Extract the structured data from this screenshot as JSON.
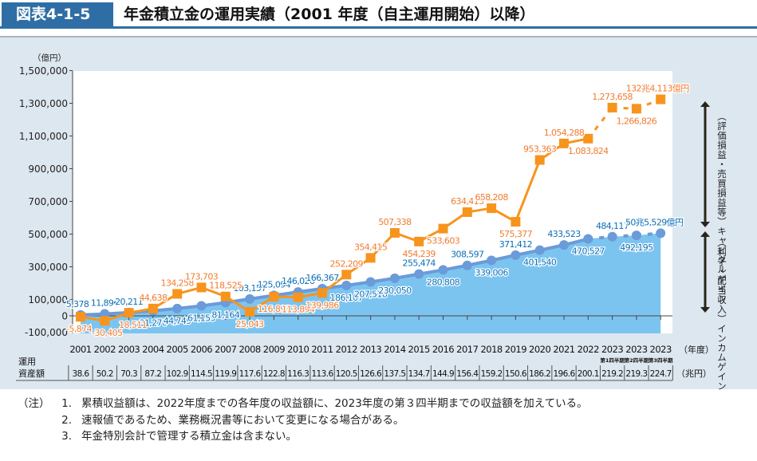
{
  "header": {
    "figure_no": "図表4-1-5",
    "title": "年金積立金の運用実績（2001 年度（自主運用開始）以降）"
  },
  "chart_data": {
    "type": "line",
    "title": "年金積立金の運用実績（2001 年度（自主運用開始）以降）",
    "ylabel": "（億円）",
    "xlabel": "（年度）",
    "ylim": [
      -100000,
      1500000
    ],
    "yticks": [
      -100000,
      0,
      100000,
      300000,
      500000,
      700000,
      900000,
      1100000,
      1300000,
      1500000
    ],
    "ytick_labels": [
      "-100,000",
      "0",
      "100,000",
      "300,000",
      "500,000",
      "700,000",
      "900,000",
      "1,100,000",
      "1,300,000",
      "1,500,000"
    ],
    "categories": [
      "2001",
      "2002",
      "2003",
      "2004",
      "2005",
      "2006",
      "2007",
      "2008",
      "2009",
      "2010",
      "2011",
      "2012",
      "2013",
      "2014",
      "2015",
      "2016",
      "2017",
      "2018",
      "2019",
      "2020",
      "2021",
      "2022",
      "2023",
      "2023",
      "2023"
    ],
    "category_sublabels": [
      "",
      "",
      "",
      "",
      "",
      "",
      "",
      "",
      "",
      "",
      "",
      "",
      "",
      "",
      "",
      "",
      "",
      "",
      "",
      "",
      "",
      "",
      "第1四半期",
      "第2四半期",
      "第3四半期"
    ],
    "series": [
      {
        "name": "キャピタルゲイン（評価損益・売買損益等）",
        "color": "#f7941d",
        "style": "line-square",
        "dashed_from_index": 21,
        "values": [
          -5874,
          -30405,
          18511,
          44638,
          134258,
          173703,
          118525,
          25043,
          116893,
          113894,
          139986,
          252209,
          354415,
          507338,
          454239,
          533603,
          634413,
          658208,
          575377,
          953363,
          1054288,
          1083824,
          1273658,
          1266826,
          1324113
        ],
        "labels": [
          "-5,874",
          "-30,405",
          "18,511",
          "44,638",
          "134,258",
          "173,703",
          "118,525",
          "25,043",
          "116,893",
          "113,894",
          "139,986",
          "252,209",
          "354,415",
          "507,338",
          "454,239",
          "533,603",
          "634,413",
          "658,208",
          "575,377",
          "953,363",
          "1,054,288",
          "1,083,824",
          "1,273,658",
          "1,266,826",
          "132兆4,113億円"
        ]
      },
      {
        "name": "インカムゲイン（利子・配当収入）",
        "color": "#6b9bd8",
        "fill": "#7cc4f0",
        "style": "area-circle",
        "values": [
          5378,
          11896,
          20211,
          31270,
          44749,
          61155,
          81164,
          103157,
          125094,
          146026,
          166367,
          186107,
          207518,
          230050,
          255474,
          280808,
          308597,
          339006,
          371412,
          401540,
          433523,
          470527,
          484117,
          492195,
          505529
        ],
        "labels": [
          "5,378",
          "11,896",
          "20,211",
          "31,270",
          "44,749",
          "61,155",
          "81,164",
          "103,157",
          "125,094",
          "146,026",
          "166,367",
          "186,107",
          "207,518",
          "230,050",
          "255,474",
          "280,808",
          "308,597",
          "339,006",
          "371,412",
          "401,540",
          "433,523",
          "470,527",
          "484,117",
          "492,195",
          "50兆5,529億円"
        ]
      }
    ],
    "annotations": {
      "capital": "（評価損益・売買損益等）キャピタルゲイン",
      "income": "（利子・配当収入）インカムゲイン"
    },
    "assets": {
      "label": "運用資産額",
      "unit": "（兆円）",
      "values": [
        "38.6",
        "50.2",
        "70.3",
        "87.2",
        "102.9",
        "114.5",
        "119.9",
        "117.6",
        "122.8",
        "116.3",
        "113.6",
        "120.5",
        "126.6",
        "137.5",
        "134.7",
        "144.9",
        "156.4",
        "159.2",
        "150.6",
        "186.2",
        "196.6",
        "200.1",
        "219.2",
        "219.3",
        "224.7"
      ]
    },
    "grid": false,
    "legend": "none"
  },
  "notes": {
    "label": "（注）",
    "items": [
      {
        "num": "1.",
        "text": "累積収益額は、2022年度までの各年度の収益額に、2023年度の第３四半期までの収益額を加えている。"
      },
      {
        "num": "2.",
        "text": "速報値であるため、業務概況書等において変更になる場合がある。"
      },
      {
        "num": "3.",
        "text": "年金特別会計で管理する積立金は含まない。"
      }
    ]
  }
}
